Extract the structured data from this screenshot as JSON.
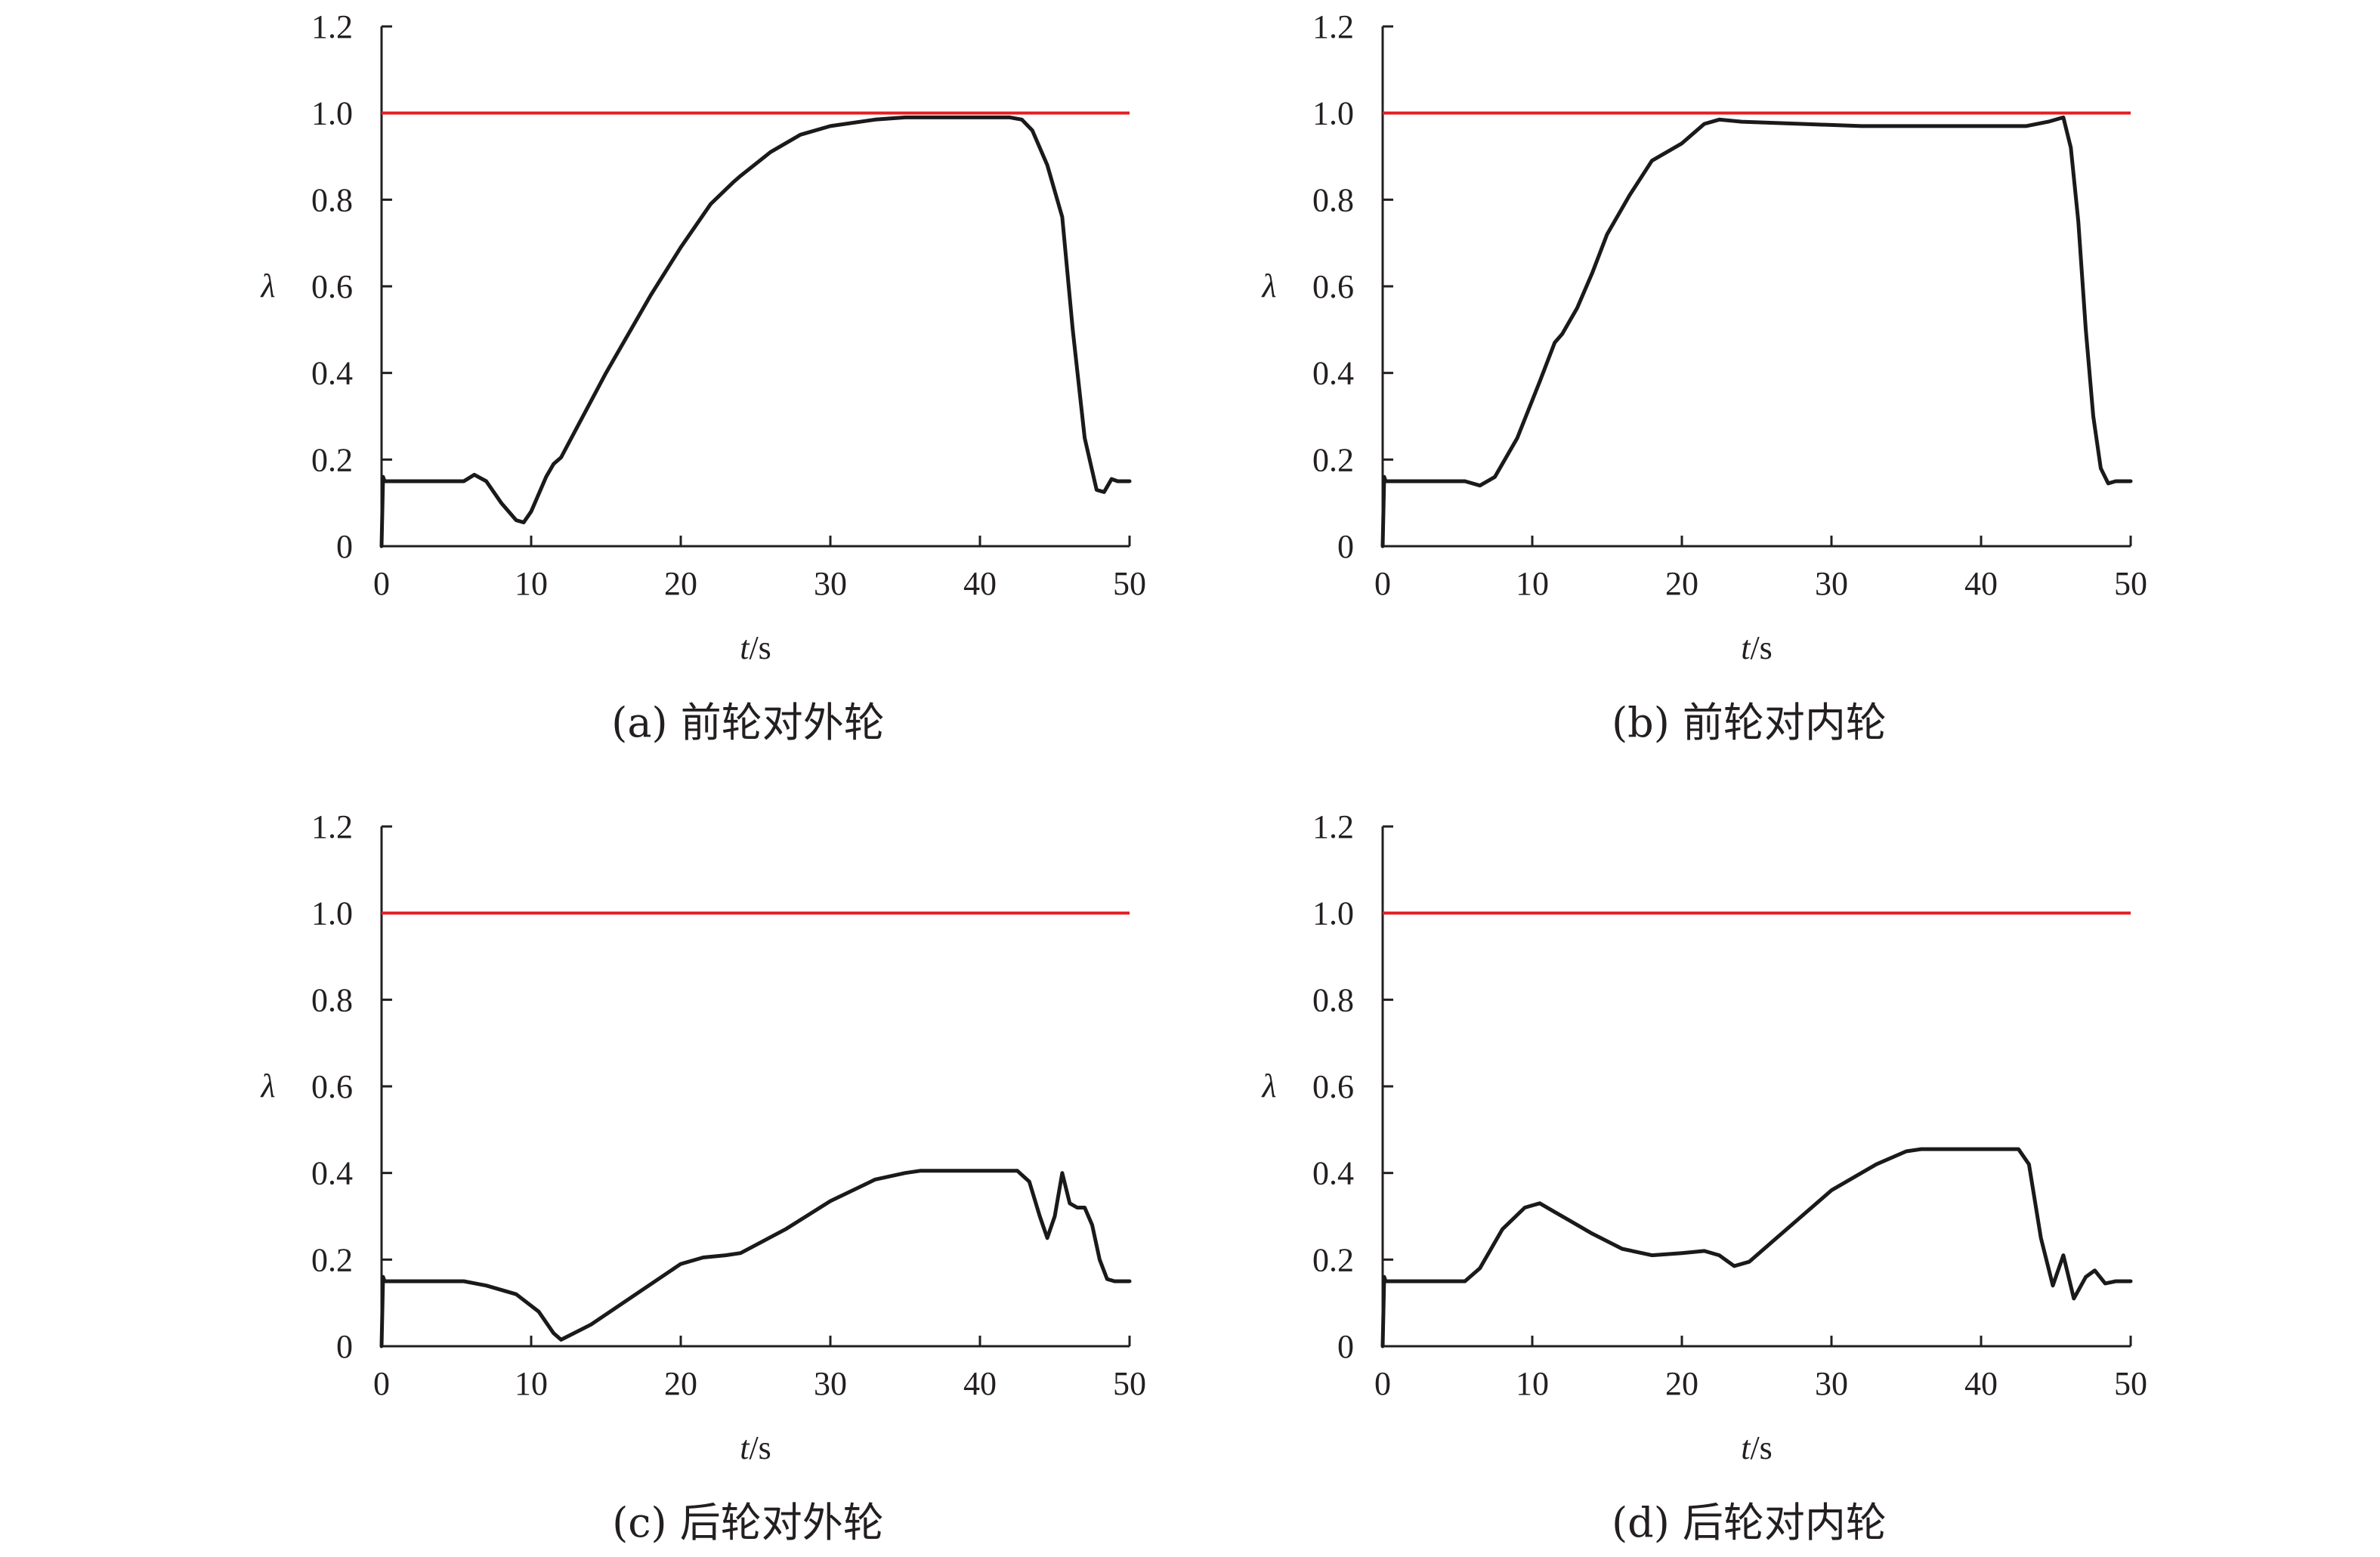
{
  "colors": {
    "text": "#231f20",
    "curve": "#1a1a1a",
    "reference": "#e31e24"
  },
  "chart_data": [
    {
      "id": "a",
      "type": "line",
      "caption": "(a) 前轮对外轮",
      "xlabel_var": "t",
      "xlabel_unit": "/s",
      "ylabel": "λ",
      "xlim": [
        0,
        50
      ],
      "ylim": [
        0,
        1.2
      ],
      "xticks": [
        0,
        10,
        20,
        30,
        40,
        50
      ],
      "xtick_labels": [
        "0",
        "10",
        "20",
        "30",
        "40",
        "50"
      ],
      "yticks": [
        0,
        0.2,
        0.4,
        0.6,
        0.8,
        1.0,
        1.2
      ],
      "ytick_labels": [
        "0",
        "0.2",
        "0.4",
        "0.6",
        "0.8",
        "1.0",
        "1.2"
      ],
      "grid": false,
      "reference_line": {
        "y": 1.0,
        "color": "#e31e24"
      },
      "series": [
        {
          "color": "#1a1a1a",
          "x": [
            0,
            0.1,
            0.2,
            0.4,
            3,
            5.5,
            6.2,
            7,
            8,
            9,
            9.5,
            10,
            11,
            11.5,
            12,
            13,
            15,
            18,
            20,
            22,
            23.5,
            24,
            26,
            28,
            30,
            33,
            35,
            38,
            40,
            42,
            42.8,
            43.5,
            44.5,
            45.5,
            46.2,
            47,
            47.8,
            48.3,
            48.8,
            49.2,
            50
          ],
          "y": [
            0,
            0.16,
            0.15,
            0.15,
            0.15,
            0.15,
            0.165,
            0.15,
            0.1,
            0.06,
            0.055,
            0.08,
            0.16,
            0.19,
            0.205,
            0.27,
            0.4,
            0.58,
            0.69,
            0.79,
            0.84,
            0.855,
            0.91,
            0.95,
            0.97,
            0.985,
            0.99,
            0.99,
            0.99,
            0.99,
            0.985,
            0.96,
            0.88,
            0.76,
            0.5,
            0.25,
            0.13,
            0.125,
            0.155,
            0.15,
            0.15
          ]
        }
      ]
    },
    {
      "id": "b",
      "type": "line",
      "caption": "(b) 前轮对内轮",
      "xlabel_var": "t",
      "xlabel_unit": "/s",
      "ylabel": "λ",
      "xlim": [
        0,
        50
      ],
      "ylim": [
        0,
        1.2
      ],
      "xticks": [
        0,
        10,
        20,
        30,
        40,
        50
      ],
      "xtick_labels": [
        "0",
        "10",
        "20",
        "30",
        "40",
        "50"
      ],
      "yticks": [
        0,
        0.2,
        0.4,
        0.6,
        0.8,
        1.0,
        1.2
      ],
      "ytick_labels": [
        "0",
        "0.2",
        "0.4",
        "0.6",
        "0.8",
        "1.0",
        "1.2"
      ],
      "grid": false,
      "reference_line": {
        "y": 1.0,
        "color": "#e31e24"
      },
      "series": [
        {
          "color": "#1a1a1a",
          "x": [
            0,
            0.1,
            0.2,
            0.4,
            3,
            5.5,
            6,
            6.5,
            7.5,
            9,
            10.5,
            11.5,
            12,
            13,
            14,
            15,
            16.5,
            18,
            20,
            21.5,
            22.5,
            24,
            28,
            32,
            36,
            40,
            43,
            44.5,
            45.5,
            46,
            46.5,
            47,
            47.5,
            48,
            48.5,
            49,
            50
          ],
          "y": [
            0,
            0.16,
            0.15,
            0.15,
            0.15,
            0.15,
            0.145,
            0.14,
            0.16,
            0.25,
            0.38,
            0.47,
            0.49,
            0.55,
            0.63,
            0.72,
            0.81,
            0.89,
            0.93,
            0.975,
            0.985,
            0.98,
            0.975,
            0.97,
            0.97,
            0.97,
            0.97,
            0.98,
            0.99,
            0.92,
            0.75,
            0.5,
            0.3,
            0.18,
            0.145,
            0.15,
            0.15
          ]
        }
      ]
    },
    {
      "id": "c",
      "type": "line",
      "caption": "(c) 后轮对外轮",
      "xlabel_var": "t",
      "xlabel_unit": "/s",
      "ylabel": "λ",
      "xlim": [
        0,
        50
      ],
      "ylim": [
        0,
        1.2
      ],
      "xticks": [
        0,
        10,
        20,
        30,
        40,
        50
      ],
      "xtick_labels": [
        "0",
        "10",
        "20",
        "30",
        "40",
        "50"
      ],
      "yticks": [
        0,
        0.2,
        0.4,
        0.6,
        0.8,
        1.0,
        1.2
      ],
      "ytick_labels": [
        "0",
        "0.2",
        "0.4",
        "0.6",
        "0.8",
        "1.0",
        "1.2"
      ],
      "grid": false,
      "reference_line": {
        "y": 1.0,
        "color": "#e31e24"
      },
      "series": [
        {
          "color": "#1a1a1a",
          "x": [
            0,
            0.1,
            0.2,
            0.4,
            3,
            5.5,
            7,
            9,
            10.5,
            11.5,
            12,
            14,
            17,
            20,
            21.5,
            23,
            24,
            27,
            30,
            33,
            35,
            36,
            40,
            42.5,
            43.3,
            44,
            44.5,
            45,
            45.5,
            46,
            46.5,
            47,
            47.5,
            48,
            48.5,
            49,
            50
          ],
          "y": [
            0,
            0.16,
            0.15,
            0.15,
            0.15,
            0.15,
            0.14,
            0.12,
            0.08,
            0.03,
            0.015,
            0.05,
            0.12,
            0.19,
            0.205,
            0.21,
            0.215,
            0.27,
            0.335,
            0.385,
            0.4,
            0.405,
            0.405,
            0.405,
            0.38,
            0.3,
            0.25,
            0.3,
            0.4,
            0.33,
            0.32,
            0.32,
            0.28,
            0.2,
            0.155,
            0.15,
            0.15
          ]
        }
      ]
    },
    {
      "id": "d",
      "type": "line",
      "caption": "(d) 后轮对内轮",
      "xlabel_var": "t",
      "xlabel_unit": "/s",
      "ylabel": "λ",
      "xlim": [
        0,
        50
      ],
      "ylim": [
        0,
        1.2
      ],
      "xticks": [
        0,
        10,
        20,
        30,
        40,
        50
      ],
      "xtick_labels": [
        "0",
        "10",
        "20",
        "30",
        "40",
        "50"
      ],
      "yticks": [
        0,
        0.2,
        0.4,
        0.6,
        0.8,
        1.0,
        1.2
      ],
      "ytick_labels": [
        "0",
        "0.2",
        "0.4",
        "0.6",
        "0.8",
        "1.0",
        "1.2"
      ],
      "grid": false,
      "reference_line": {
        "y": 1.0,
        "color": "#e31e24"
      },
      "series": [
        {
          "color": "#1a1a1a",
          "x": [
            0,
            0.1,
            0.2,
            0.4,
            3,
            5.5,
            6.5,
            8,
            9.5,
            10.5,
            11.5,
            12.5,
            14,
            16,
            18,
            20,
            21.5,
            22.5,
            23.5,
            24.5,
            26,
            28,
            30,
            33,
            35,
            36,
            40,
            42.5,
            43.2,
            44,
            44.8,
            45.5,
            46.2,
            47,
            47.6,
            48.3,
            49,
            50
          ],
          "y": [
            0,
            0.16,
            0.15,
            0.15,
            0.15,
            0.15,
            0.18,
            0.27,
            0.32,
            0.33,
            0.31,
            0.29,
            0.26,
            0.225,
            0.21,
            0.215,
            0.22,
            0.21,
            0.185,
            0.195,
            0.24,
            0.3,
            0.36,
            0.42,
            0.45,
            0.455,
            0.455,
            0.455,
            0.42,
            0.25,
            0.14,
            0.21,
            0.11,
            0.16,
            0.175,
            0.145,
            0.15,
            0.15
          ]
        }
      ]
    }
  ]
}
